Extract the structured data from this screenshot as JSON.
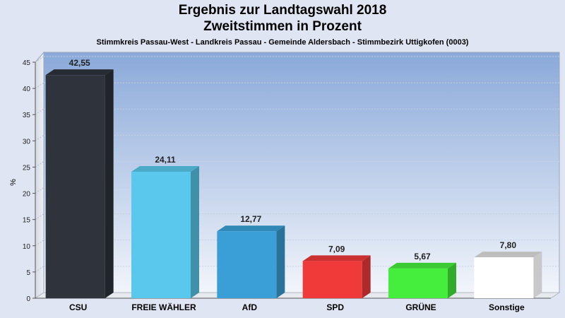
{
  "header": {
    "title_line1": "Ergebnis zur Landtagswahl 2018",
    "title_line2": "Zweitstimmen in Prozent",
    "subtitle": "Stimmkreis Passau-West - Landkreis Passau - Gemeinde Aldersbach - Stimmbezirk Uttigkofen (0003)"
  },
  "colors": {
    "background": "#dfe5f3",
    "plot_top": "#8aa9d9",
    "plot_bottom": "#f2f5fb",
    "CSU": "#2e333c",
    "FREIE WÄHLER": "#59c8ec",
    "AfD": "#3a9fd6",
    "SPD": "#f03a3a",
    "GRÜNE": "#45ee3c",
    "Sonstige": "#ffffff"
  },
  "chart_data": {
    "type": "bar",
    "title": "Ergebnis zur Landtagswahl 2018 Zweitstimmen in Prozent",
    "subtitle": "Stimmkreis Passau-West - Landkreis Passau - Gemeinde Aldersbach - Stimmbezirk Uttigkofen (0003)",
    "categories": [
      "CSU",
      "FREIE WÄHLER",
      "AfD",
      "SPD",
      "GRÜNE",
      "Sonstige"
    ],
    "values": [
      42.55,
      24.11,
      12.77,
      7.09,
      5.67,
      7.8
    ],
    "value_labels": [
      "42,55",
      "24,11",
      "12,77",
      "7,09",
      "5,67",
      "7,80"
    ],
    "xlabel": "",
    "ylabel": "%",
    "ylim": [
      0,
      45
    ],
    "yticks": [
      0,
      5,
      10,
      15,
      20,
      25,
      30,
      35,
      40,
      45
    ],
    "grid": true,
    "legend": "none"
  }
}
